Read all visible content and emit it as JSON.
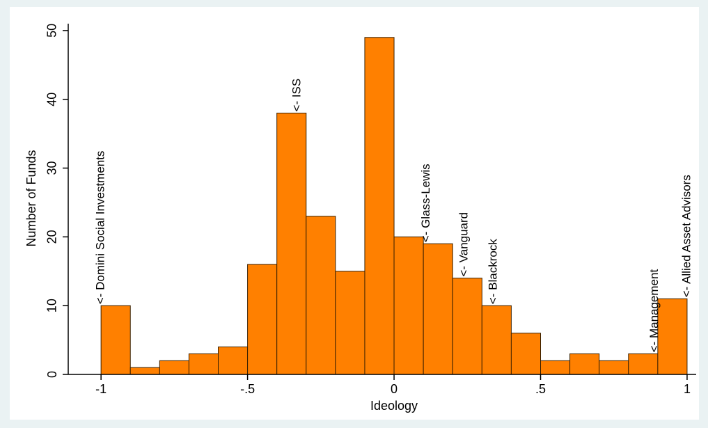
{
  "chart_data": {
    "type": "histogram",
    "x_label": "Ideology",
    "y_label": "Number of Funds",
    "bins": [
      -1,
      -0.9,
      -0.8,
      -0.7,
      -0.6,
      -0.5,
      -0.4,
      -0.3,
      -0.2,
      -0.1,
      0,
      0.1,
      0.2,
      0.3,
      0.4,
      0.5,
      0.6,
      0.7,
      0.8,
      0.9,
      1
    ],
    "values": [
      10,
      1,
      2,
      3,
      4,
      16,
      38,
      23,
      15,
      49,
      20,
      19,
      14,
      10,
      6,
      2,
      3,
      2,
      3,
      11
    ],
    "color": "#ff8000",
    "xlim": [
      -1.112,
      1.031
    ],
    "ylim": [
      0,
      51
    ],
    "xticks": [
      {
        "value": -1,
        "label": "-1"
      },
      {
        "value": -0.5,
        "label": "-.5"
      },
      0,
      {
        "value": 0.5,
        "label": ".5"
      },
      1
    ],
    "yticks": [
      0,
      10,
      20,
      30,
      40,
      50
    ],
    "grid": false,
    "annotations": [
      {
        "text": "<- Domini Social Investments",
        "x": -1,
        "y": 10
      },
      {
        "text": "<- ISS",
        "x": -0.33,
        "y": 38
      },
      {
        "text": "<- Glass-Lewis",
        "x": 0.11,
        "y": 19
      },
      {
        "text": "<- Vanguard",
        "x": 0.24,
        "y": 14
      },
      {
        "text": "<- Blackrock",
        "x": 0.34,
        "y": 10
      },
      {
        "text": "<- Management",
        "x": 0.89,
        "y": 3
      },
      {
        "text": "<- Allied Asset Advisors",
        "x": 1,
        "y": 11
      }
    ]
  }
}
